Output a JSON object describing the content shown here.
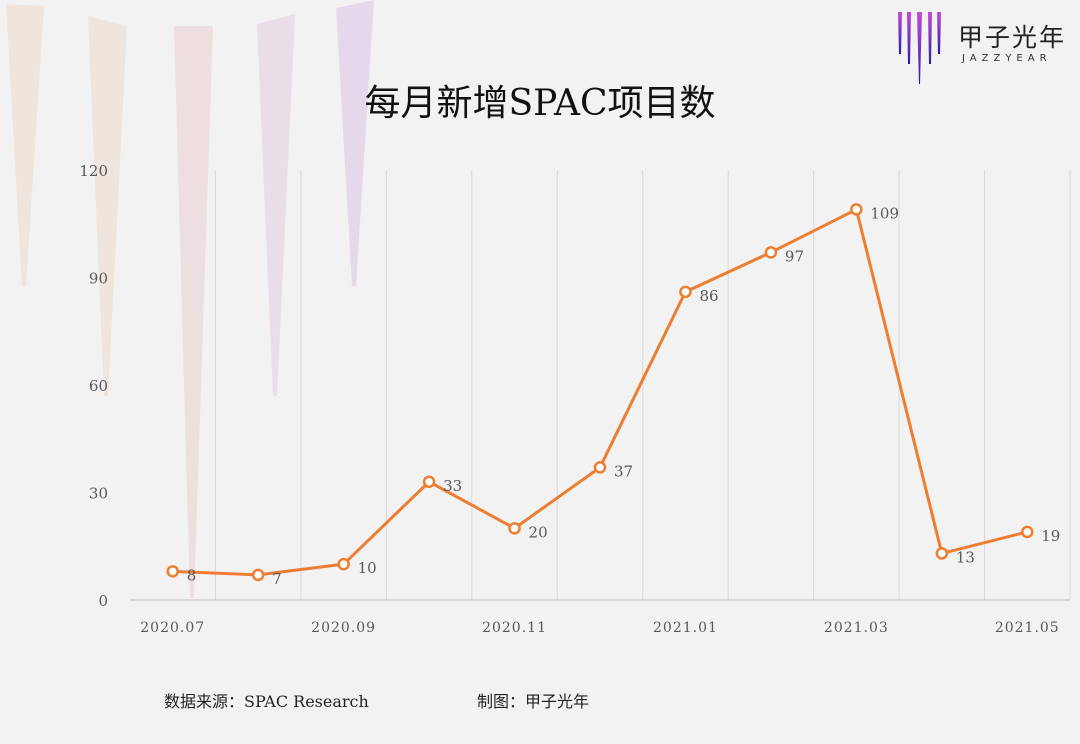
{
  "logo": {
    "name": "甲子光年",
    "subtitle": "JAZZYEAR"
  },
  "title": "每月新增SPAC项目数",
  "footer": {
    "source": "数据来源：SPAC Research",
    "made_by": "制图：甲子光年"
  },
  "colors": {
    "line": "#ed7d31",
    "grid": "#d9d9d9",
    "axis_text": "#595959",
    "accent_purple": "#8a4bd8"
  },
  "chart_data": {
    "type": "line",
    "title": "每月新增SPAC项目数",
    "x": [
      "2020.07",
      "2020.08",
      "2020.09",
      "2020.10",
      "2020.11",
      "2020.12",
      "2021.01",
      "2021.02",
      "2021.03",
      "2021.04",
      "2021.05"
    ],
    "x_tick_labels": [
      "2020.07",
      "2020.09",
      "2020.11",
      "2021.01",
      "2021.03",
      "2021.05"
    ],
    "series": [
      {
        "values": [
          8,
          7,
          10,
          33,
          20,
          37,
          86,
          97,
          109,
          13,
          19
        ]
      }
    ],
    "y_ticks": [
      0,
      30,
      60,
      90,
      120
    ],
    "ylim": [
      0,
      120
    ],
    "xlabel": "",
    "ylabel": "",
    "grid": "vertical",
    "legend": "none",
    "data_labels": true
  }
}
